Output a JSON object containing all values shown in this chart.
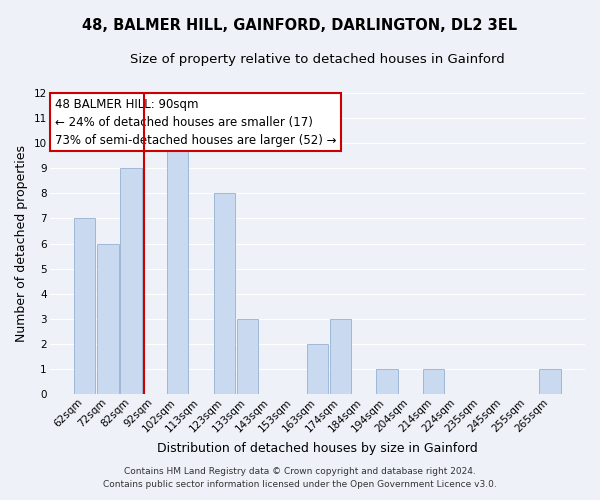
{
  "title": "48, BALMER HILL, GAINFORD, DARLINGTON, DL2 3EL",
  "subtitle": "Size of property relative to detached houses in Gainford",
  "xlabel": "Distribution of detached houses by size in Gainford",
  "ylabel": "Number of detached properties",
  "bar_labels": [
    "62sqm",
    "72sqm",
    "82sqm",
    "92sqm",
    "102sqm",
    "113sqm",
    "123sqm",
    "133sqm",
    "143sqm",
    "153sqm",
    "163sqm",
    "174sqm",
    "184sqm",
    "194sqm",
    "204sqm",
    "214sqm",
    "224sqm",
    "235sqm",
    "245sqm",
    "255sqm",
    "265sqm"
  ],
  "bar_values": [
    7,
    6,
    9,
    0,
    10,
    0,
    8,
    3,
    0,
    0,
    2,
    3,
    0,
    1,
    0,
    1,
    0,
    0,
    0,
    0,
    1
  ],
  "bar_color": "#c9d9f0",
  "bar_edge_color": "#a0b8d8",
  "highlight_color": "#cc0000",
  "annotation_title": "48 BALMER HILL: 90sqm",
  "annotation_line1": "← 24% of detached houses are smaller (17)",
  "annotation_line2": "73% of semi-detached houses are larger (52) →",
  "annotation_box_color": "#ffffff",
  "annotation_box_edge": "#cc0000",
  "ylim": [
    0,
    12
  ],
  "yticks": [
    0,
    1,
    2,
    3,
    4,
    5,
    6,
    7,
    8,
    9,
    10,
    11,
    12
  ],
  "footer1": "Contains HM Land Registry data © Crown copyright and database right 2024.",
  "footer2": "Contains public sector information licensed under the Open Government Licence v3.0.",
  "background_color": "#eef2f8",
  "grid_color": "#ffffff",
  "title_fontsize": 10.5,
  "subtitle_fontsize": 9.5,
  "axis_label_fontsize": 9,
  "tick_fontsize": 7.5,
  "footer_fontsize": 6.5,
  "annotation_fontsize": 8.5
}
